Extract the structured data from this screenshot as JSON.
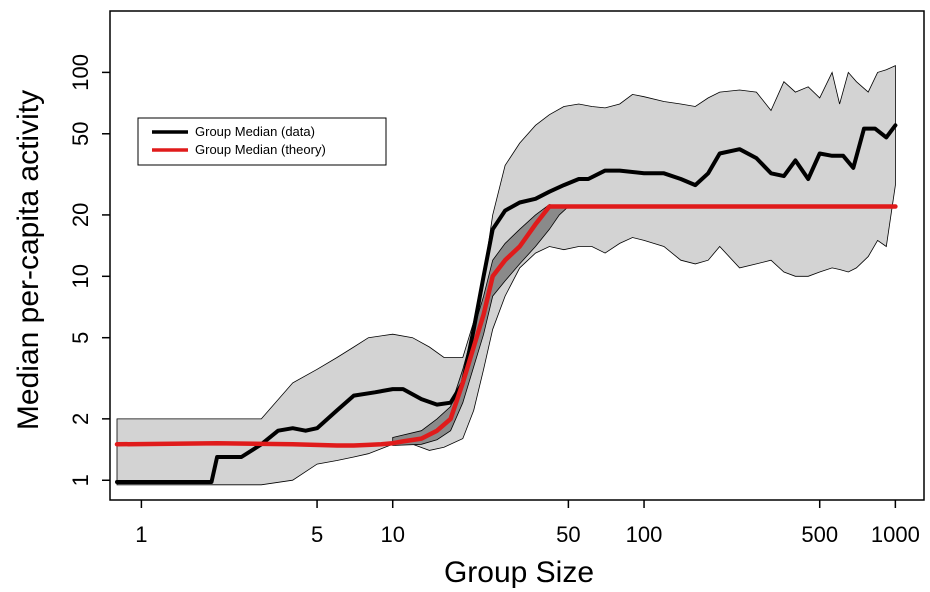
{
  "chart_data": {
    "type": "line",
    "title": "",
    "xlabel": "Group Size",
    "ylabel": "Median per-capita activity",
    "x_scale": "log",
    "y_scale": "log",
    "xlim": [
      0.75,
      1300
    ],
    "ylim": [
      0.8,
      200
    ],
    "x_ticks": [
      1,
      5,
      10,
      50,
      100,
      500,
      1000
    ],
    "x_tick_labels": [
      "1",
      "5",
      "10",
      "50",
      "100",
      "500",
      "1000"
    ],
    "y_ticks": [
      1,
      2,
      5,
      10,
      20,
      50,
      100
    ],
    "y_tick_labels": [
      "1",
      "2",
      "5",
      "10",
      "20",
      "50",
      "100"
    ],
    "grid": false,
    "legend_position": "top-left",
    "series": [
      {
        "name": "Group Median (data)",
        "color": "#000000",
        "x": [
          0.8,
          1.9,
          2.0,
          2.5,
          3.0,
          3.5,
          4.0,
          4.5,
          5.0,
          6.0,
          7.0,
          8.5,
          10.0,
          11.0,
          13.0,
          15.0,
          17.0,
          19.0,
          21.0,
          23.0,
          25.0,
          28.0,
          32.0,
          37.0,
          42.0,
          48.0,
          55.0,
          60.0,
          70.0,
          80.0,
          100.0,
          120.0,
          140.0,
          160.0,
          180.0,
          200.0,
          240.0,
          280.0,
          320.0,
          360.0,
          400.0,
          450.0,
          500.0,
          560.0,
          620.0,
          680.0,
          750.0,
          830.0,
          920.0,
          1000.0
        ],
        "values": [
          0.98,
          0.98,
          1.3,
          1.3,
          1.5,
          1.75,
          1.8,
          1.75,
          1.8,
          2.2,
          2.6,
          2.7,
          2.8,
          2.8,
          2.5,
          2.35,
          2.4,
          3.0,
          5.5,
          10.0,
          17.0,
          21.0,
          23.0,
          24.0,
          26.0,
          28.0,
          30.0,
          30.0,
          33.0,
          33.0,
          32.0,
          32.0,
          30.0,
          28.0,
          32.0,
          40.0,
          42.0,
          38.0,
          32.0,
          31.0,
          37.0,
          30.0,
          40.0,
          39.0,
          39.0,
          34.0,
          53.0,
          53.0,
          48.0,
          55.0
        ]
      },
      {
        "name": "Group Median (theory)",
        "color": "#e01b1b",
        "x": [
          0.8,
          2.0,
          4.0,
          6.0,
          7.0,
          8.0,
          9.0,
          10.0,
          11.0,
          13.0,
          15.0,
          17.0,
          19.0,
          21.0,
          23.0,
          25.0,
          28.0,
          32.0,
          37.0,
          42.0,
          45.0,
          50.0,
          60.0,
          100.0,
          200.0,
          300.0,
          500.0,
          1000.0
        ],
        "values": [
          1.5,
          1.52,
          1.5,
          1.48,
          1.48,
          1.49,
          1.5,
          1.52,
          1.55,
          1.6,
          1.75,
          2.0,
          3.0,
          4.5,
          6.5,
          10.0,
          12.0,
          14.0,
          18.0,
          22.0,
          22.0,
          22.0,
          22.0,
          22.0,
          22.0,
          22.0,
          22.0,
          22.0
        ]
      }
    ],
    "bands": [
      {
        "role": "data range",
        "color": "#d3d3d3",
        "x": [
          0.8,
          2.0,
          3.0,
          4.0,
          5.0,
          6.0,
          7.0,
          8.0,
          10.0,
          12.0,
          14.0,
          16.0,
          19.0,
          21.0,
          23.0,
          25.0,
          28.0,
          32.0,
          37.0,
          42.0,
          48.0,
          55.0,
          62.0,
          70.0,
          80.0,
          90.0,
          100.0,
          120.0,
          140.0,
          160.0,
          180.0,
          200.0,
          240.0,
          280.0,
          320.0,
          360.0,
          400.0,
          450.0,
          500.0,
          560.0,
          600.0,
          650.0,
          700.0,
          780.0,
          850.0,
          920.0,
          1000.0
        ],
        "upper": [
          2.0,
          2.0,
          2.0,
          3.0,
          3.5,
          4.0,
          4.5,
          5.0,
          5.2,
          5.0,
          4.5,
          4.0,
          4.0,
          6.0,
          10.0,
          20.0,
          35.0,
          45.0,
          55.0,
          62.0,
          68.0,
          70.0,
          68.0,
          67.0,
          70.0,
          78.0,
          76.0,
          72.0,
          70.0,
          68.0,
          75.0,
          80.0,
          82.0,
          80.0,
          65.0,
          90.0,
          80.0,
          85.0,
          75.0,
          100.0,
          70.0,
          100.0,
          90.0,
          80.0,
          100.0,
          103.0,
          108.0
        ],
        "lower": [
          0.95,
          0.95,
          0.95,
          1.0,
          1.2,
          1.25,
          1.3,
          1.35,
          1.5,
          1.5,
          1.4,
          1.45,
          1.6,
          2.2,
          3.5,
          5.5,
          8.0,
          11.0,
          13.0,
          14.0,
          13.5,
          14.0,
          14.0,
          13.0,
          14.5,
          15.5,
          15.0,
          14.0,
          12.0,
          11.5,
          12.0,
          14.0,
          11.0,
          11.5,
          12.0,
          10.5,
          10.0,
          10.0,
          10.5,
          11.0,
          10.8,
          10.5,
          11.0,
          12.5,
          15.0,
          14.0,
          28.0
        ]
      },
      {
        "role": "theory range",
        "color": "#8a8a8a",
        "x": [
          10.0,
          13.0,
          15.0,
          17.0,
          19.0,
          21.0,
          23.0,
          25.0,
          28.0,
          32.0,
          37.0,
          42.0,
          46.0,
          50.0
        ],
        "upper": [
          1.62,
          1.75,
          2.0,
          2.3,
          3.5,
          5.5,
          8.0,
          12.0,
          14.5,
          17.0,
          20.0,
          22.5,
          22.0,
          22.0
        ],
        "lower": [
          1.48,
          1.5,
          1.58,
          1.75,
          2.4,
          3.6,
          5.2,
          8.0,
          9.5,
          11.5,
          14.0,
          17.0,
          20.0,
          22.0
        ]
      }
    ]
  }
}
